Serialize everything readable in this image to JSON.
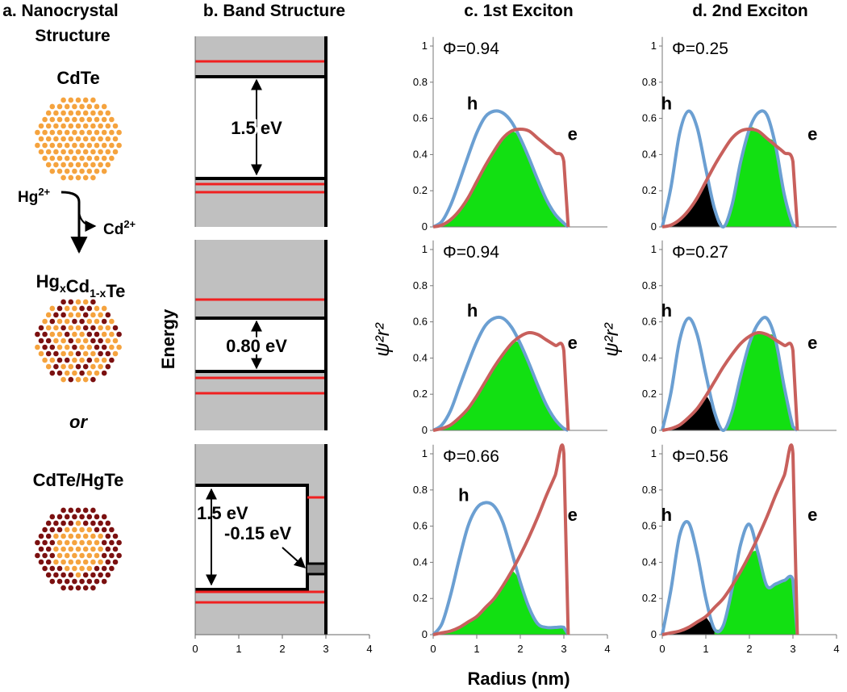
{
  "headers": {
    "a": [
      "a. Nanocrystal",
      "Structure"
    ],
    "b": "b. Band Structure",
    "c": "c. 1st Exciton",
    "d": "d. 2nd Exciton"
  },
  "nanocrystal": {
    "pure": "CdTe",
    "hg": {
      "base": "Hg",
      "sup": "2+"
    },
    "cd": {
      "base": "Cd",
      "sup": "2+"
    },
    "alloy": [
      {
        "base": "Hg",
        "sub": "x"
      },
      {
        "base": "Cd",
        "sub": "1-x"
      },
      {
        "base": "Te"
      }
    ],
    "or": "or",
    "coreshell": "CdTe/HgTe"
  },
  "band": {
    "energy_label": "Energy",
    "gaps": [
      "1.5 eV",
      "0.80 eV",
      "1.5 eV",
      "-0.15 eV"
    ],
    "xlim": [
      0,
      4
    ],
    "xticks": [
      0,
      1,
      2,
      3,
      4
    ]
  },
  "x_label": "Radius (nm)",
  "chart_data": [
    {
      "type": "line",
      "annotation": "Φ=0.94",
      "fill_colors": [
        "#12e012"
      ],
      "x": [
        0,
        0.2,
        0.4,
        0.6,
        0.8,
        1.0,
        1.2,
        1.4,
        1.6,
        1.8,
        2.0,
        2.2,
        2.4,
        2.6,
        2.8,
        3.0,
        3.1
      ],
      "series": [
        {
          "name": "h",
          "color": "#6b9fd2",
          "values": [
            0,
            0.03,
            0.12,
            0.25,
            0.39,
            0.52,
            0.61,
            0.64,
            0.63,
            0.58,
            0.49,
            0.38,
            0.26,
            0.15,
            0.07,
            0.02,
            0
          ]
        },
        {
          "name": "e",
          "color": "#c8605c",
          "values": [
            0,
            0.01,
            0.04,
            0.09,
            0.16,
            0.25,
            0.34,
            0.42,
            0.49,
            0.53,
            0.54,
            0.53,
            0.49,
            0.45,
            0.41,
            0.36,
            0
          ]
        }
      ],
      "xlim": [
        0,
        4
      ],
      "ylim": [
        0,
        1.05
      ],
      "yticks": [
        0,
        0.2,
        0.4,
        0.6,
        0.8,
        1
      ]
    },
    {
      "type": "line",
      "annotation": "Φ=0.94",
      "fill_colors": [
        "#12e012"
      ],
      "ylabel": "ψ²r²",
      "x": [
        0,
        0.2,
        0.4,
        0.6,
        0.8,
        1.0,
        1.2,
        1.4,
        1.6,
        1.8,
        2.0,
        2.2,
        2.4,
        2.6,
        2.8,
        3.0,
        3.1
      ],
      "series": [
        {
          "name": "h",
          "color": "#6b9fd2",
          "values": [
            0,
            0.03,
            0.11,
            0.24,
            0.37,
            0.49,
            0.58,
            0.62,
            0.62,
            0.57,
            0.48,
            0.37,
            0.25,
            0.14,
            0.06,
            0.01,
            0
          ]
        },
        {
          "name": "e",
          "color": "#c8605c",
          "values": [
            0,
            0.01,
            0.03,
            0.07,
            0.12,
            0.19,
            0.27,
            0.35,
            0.42,
            0.48,
            0.52,
            0.54,
            0.53,
            0.5,
            0.47,
            0.44,
            0
          ]
        }
      ],
      "xlim": [
        0,
        4
      ],
      "ylim": [
        0,
        1.05
      ],
      "yticks": [
        0,
        0.2,
        0.4,
        0.6,
        0.8,
        1
      ]
    },
    {
      "type": "line",
      "annotation": "Φ=0.66",
      "fill_colors": [
        "#12e012"
      ],
      "x": [
        0,
        0.2,
        0.4,
        0.6,
        0.8,
        1.0,
        1.2,
        1.4,
        1.6,
        1.8,
        2.0,
        2.2,
        2.4,
        2.6,
        2.8,
        3.0,
        3.1
      ],
      "series": [
        {
          "name": "h",
          "color": "#6b9fd2",
          "values": [
            0,
            0.06,
            0.22,
            0.42,
            0.6,
            0.7,
            0.73,
            0.71,
            0.62,
            0.46,
            0.29,
            0.15,
            0.06,
            0.04,
            0.04,
            0.04,
            0
          ]
        },
        {
          "name": "e",
          "color": "#c8605c",
          "values": [
            0,
            0.01,
            0.02,
            0.04,
            0.07,
            0.1,
            0.15,
            0.2,
            0.27,
            0.35,
            0.44,
            0.54,
            0.65,
            0.77,
            0.88,
            1.0,
            0
          ]
        }
      ],
      "xlim": [
        0,
        4
      ],
      "xticks": [
        0,
        1,
        2,
        3,
        4
      ],
      "ylim": [
        0,
        1.05
      ],
      "yticks": [
        0,
        0.2,
        0.4,
        0.6,
        0.8,
        1
      ]
    },
    {
      "type": "line",
      "annotation": "Φ=0.25",
      "fill_colors": [
        "#000000",
        "#12e012"
      ],
      "x": [
        0,
        0.2,
        0.4,
        0.6,
        0.8,
        1.0,
        1.2,
        1.4,
        1.6,
        1.8,
        2.0,
        2.2,
        2.4,
        2.6,
        2.8,
        3.0,
        3.1
      ],
      "series": [
        {
          "name": "h",
          "color": "#6b9fd2",
          "values": [
            0,
            0.22,
            0.52,
            0.64,
            0.55,
            0.32,
            0.1,
            0,
            0.12,
            0.36,
            0.54,
            0.63,
            0.62,
            0.45,
            0.18,
            0.01,
            0
          ]
        },
        {
          "name": "e",
          "color": "#c8605c",
          "values": [
            0,
            0.01,
            0.04,
            0.09,
            0.16,
            0.25,
            0.34,
            0.42,
            0.49,
            0.53,
            0.54,
            0.53,
            0.49,
            0.45,
            0.41,
            0.36,
            0
          ]
        }
      ],
      "xlim": [
        0,
        4
      ],
      "ylim": [
        0,
        1.05
      ],
      "yticks": [
        0,
        0.2,
        0.4,
        0.6,
        0.8,
        1
      ]
    },
    {
      "type": "line",
      "annotation": "Φ=0.27",
      "fill_colors": [
        "#000000",
        "#12e012"
      ],
      "ylabel": "ψ²r²",
      "x": [
        0,
        0.2,
        0.4,
        0.6,
        0.8,
        1.0,
        1.2,
        1.4,
        1.6,
        1.8,
        2.0,
        2.2,
        2.4,
        2.6,
        2.8,
        3.0,
        3.1
      ],
      "series": [
        {
          "name": "h",
          "color": "#6b9fd2",
          "values": [
            0,
            0.21,
            0.5,
            0.62,
            0.53,
            0.31,
            0.1,
            0,
            0.1,
            0.3,
            0.48,
            0.59,
            0.62,
            0.5,
            0.24,
            0.02,
            0
          ]
        },
        {
          "name": "e",
          "color": "#c8605c",
          "values": [
            0,
            0.01,
            0.03,
            0.07,
            0.12,
            0.19,
            0.27,
            0.35,
            0.42,
            0.48,
            0.52,
            0.54,
            0.53,
            0.5,
            0.47,
            0.44,
            0
          ]
        }
      ],
      "xlim": [
        0,
        4
      ],
      "ylim": [
        0,
        1.05
      ],
      "yticks": [
        0,
        0.2,
        0.4,
        0.6,
        0.8,
        1
      ]
    },
    {
      "type": "line",
      "annotation": "Φ=0.56",
      "fill_colors": [
        "#000000",
        "#12e012"
      ],
      "x": [
        0,
        0.2,
        0.4,
        0.6,
        0.8,
        1.0,
        1.2,
        1.4,
        1.6,
        1.8,
        2.0,
        2.2,
        2.4,
        2.6,
        2.8,
        3.0,
        3.1
      ],
      "series": [
        {
          "name": "h",
          "color": "#6b9fd2",
          "values": [
            0,
            0.25,
            0.55,
            0.62,
            0.45,
            0.2,
            0.03,
            0.05,
            0.25,
            0.5,
            0.61,
            0.45,
            0.27,
            0.28,
            0.3,
            0.3,
            0
          ]
        },
        {
          "name": "e",
          "color": "#c8605c",
          "values": [
            0,
            0.01,
            0.02,
            0.04,
            0.07,
            0.1,
            0.15,
            0.2,
            0.27,
            0.35,
            0.44,
            0.54,
            0.65,
            0.77,
            0.88,
            1.0,
            0
          ]
        }
      ],
      "xlim": [
        0,
        4
      ],
      "xticks": [
        0,
        1,
        2,
        3,
        4
      ],
      "ylim": [
        0,
        1.05
      ],
      "yticks": [
        0,
        0.2,
        0.4,
        0.6,
        0.8,
        1
      ]
    }
  ]
}
